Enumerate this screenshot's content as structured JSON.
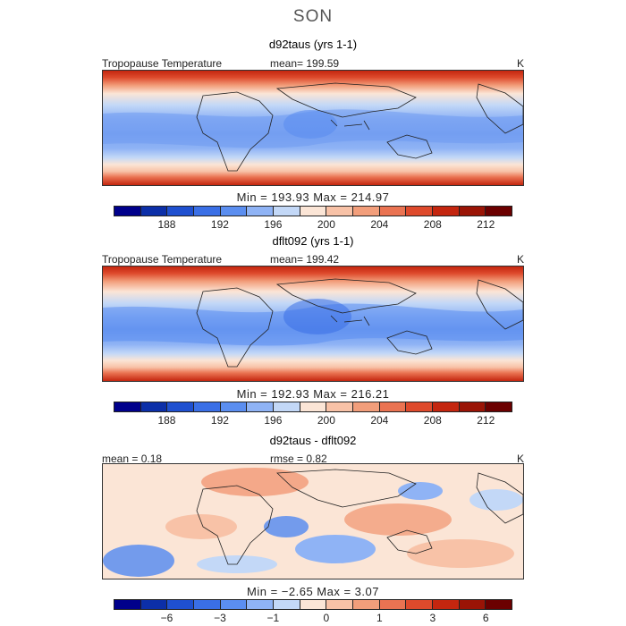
{
  "figure": {
    "season": "SON"
  },
  "chart_data": [
    {
      "type": "heatmap",
      "title": "d92taus (yrs 1-1)",
      "field_label": "Tropopause Temperature",
      "mean_text": "mean= 199.59",
      "units": "K",
      "minmax_text": "Min = 193.93 Max = 214.97",
      "min": 193.93,
      "max": 214.97,
      "mean": 199.59,
      "colorbar_ticks": [
        "188",
        "192",
        "196",
        "200",
        "204",
        "208",
        "212"
      ],
      "colorbar_colors": [
        "#00008b",
        "#0c2fa8",
        "#1f50d0",
        "#3a6fe6",
        "#5b8ef0",
        "#8fb3f5",
        "#c3d8f7",
        "#fbe5d6",
        "#f8c2a7",
        "#f29e7b",
        "#ea7352",
        "#de4a2c",
        "#c4260f",
        "#9a1406",
        "#6b0000"
      ]
    },
    {
      "type": "heatmap",
      "title": "dflt092 (yrs 1-1)",
      "field_label": "Tropopause Temperature",
      "mean_text": "mean= 199.42",
      "units": "K",
      "minmax_text": "Min = 192.93 Max = 216.21",
      "min": 192.93,
      "max": 216.21,
      "mean": 199.42,
      "colorbar_ticks": [
        "188",
        "192",
        "196",
        "200",
        "204",
        "208",
        "212"
      ],
      "colorbar_colors": [
        "#00008b",
        "#0c2fa8",
        "#1f50d0",
        "#3a6fe6",
        "#5b8ef0",
        "#8fb3f5",
        "#c3d8f7",
        "#fbe5d6",
        "#f8c2a7",
        "#f29e7b",
        "#ea7352",
        "#de4a2c",
        "#c4260f",
        "#9a1406",
        "#6b0000"
      ]
    },
    {
      "type": "heatmap",
      "title": "d92taus - dflt092",
      "mean_text": "mean = 0.18",
      "rmse_text": "rmse = 0.82",
      "units": "K",
      "minmax_text": "Min = −2.65 Max = 3.07",
      "min": -2.65,
      "max": 3.07,
      "mean": 0.18,
      "rmse": 0.82,
      "colorbar_ticks": [
        "−6",
        "−3",
        "−1",
        "0",
        "1",
        "3",
        "6"
      ],
      "colorbar_colors": [
        "#00008b",
        "#0c2fa8",
        "#1f50d0",
        "#3a6fe6",
        "#5b8ef0",
        "#8fb3f5",
        "#c3d8f7",
        "#fbe5d6",
        "#f8c2a7",
        "#f29e7b",
        "#ea7352",
        "#de4a2c",
        "#c4260f",
        "#9a1406",
        "#6b0000"
      ]
    }
  ]
}
